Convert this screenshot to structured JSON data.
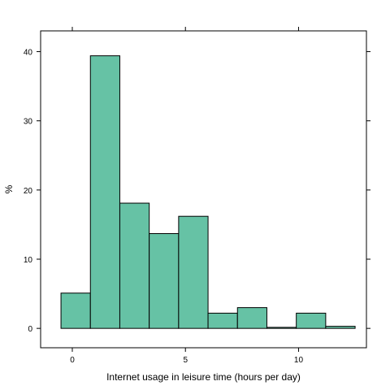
{
  "chart_data": {
    "type": "bar",
    "subtype": "histogram",
    "xlabel": "Internet usage in leisure time (hours per day)",
    "ylabel": "%",
    "xlim": [
      -1.4,
      13.0
    ],
    "ylim": [
      -2.8,
      43.0
    ],
    "x_ticks": [
      0,
      5,
      10
    ],
    "y_ticks": [
      0,
      10,
      20,
      30,
      40
    ],
    "bins": [
      {
        "start": -0.5,
        "end": 0.8,
        "value": 5.1
      },
      {
        "start": 0.8,
        "end": 2.1,
        "value": 39.4
      },
      {
        "start": 2.1,
        "end": 3.4,
        "value": 18.1
      },
      {
        "start": 3.4,
        "end": 4.7,
        "value": 13.7
      },
      {
        "start": 4.7,
        "end": 6.0,
        "value": 16.2
      },
      {
        "start": 6.0,
        "end": 7.3,
        "value": 2.2
      },
      {
        "start": 7.3,
        "end": 8.6,
        "value": 3.0
      },
      {
        "start": 8.6,
        "end": 9.9,
        "value": 0.15
      },
      {
        "start": 9.9,
        "end": 11.2,
        "value": 2.2
      },
      {
        "start": 11.2,
        "end": 12.5,
        "value": 0.3
      }
    ],
    "colors": {
      "bar_fill": "#66c2a5",
      "bar_stroke": "#000000",
      "frame": "#000000"
    },
    "grid": false,
    "legend": "none"
  }
}
